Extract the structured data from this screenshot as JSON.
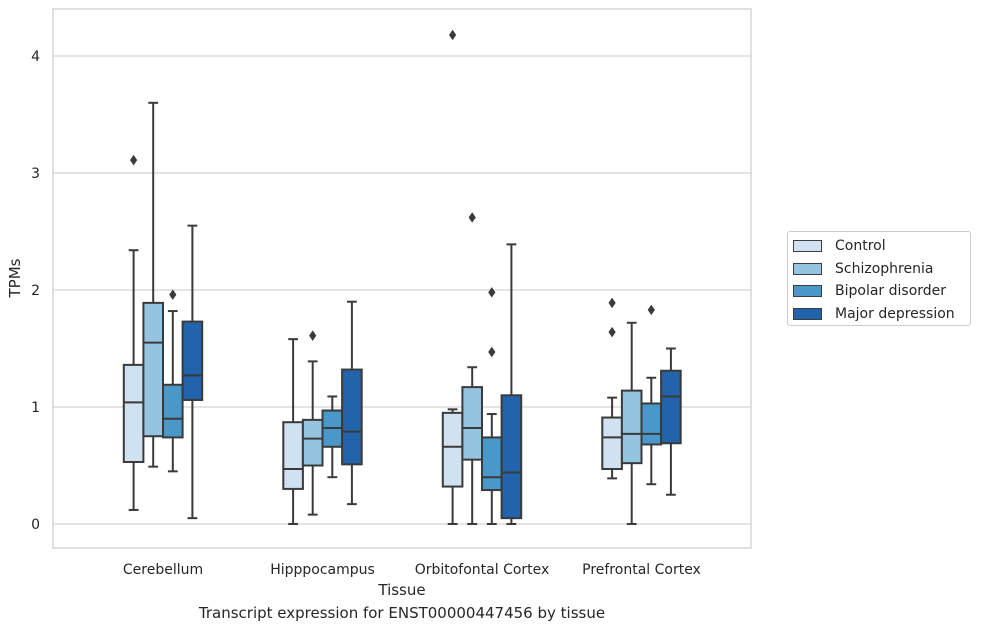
{
  "caption": "Transcript expression for ENST00000447456 by tissue",
  "chart_data": {
    "type": "box",
    "xlabel": "Tissue",
    "ylabel": "TPMs",
    "ylim": [
      -0.2,
      4.4
    ],
    "yticks": [
      0,
      1,
      2,
      3,
      4
    ],
    "categories": [
      "Cerebellum",
      "Hipppocampus",
      "Orbitofontal Cortex",
      "Prefrontal Cortex"
    ],
    "grid": "horizontal",
    "legend_position": "right",
    "series": [
      {
        "name": "Control",
        "color": "#d0e1f2",
        "boxes": [
          {
            "whisker_low": 0.12,
            "q1": 0.53,
            "median": 1.04,
            "q3": 1.36,
            "whisker_high": 2.34,
            "outliers": [
              3.11
            ]
          },
          {
            "whisker_low": 0.0,
            "q1": 0.3,
            "median": 0.47,
            "q3": 0.87,
            "whisker_high": 1.58,
            "outliers": []
          },
          {
            "whisker_low": 0.0,
            "q1": 0.32,
            "median": 0.66,
            "q3": 0.95,
            "whisker_high": 0.98,
            "outliers": [
              4.18
            ]
          },
          {
            "whisker_low": 0.39,
            "q1": 0.47,
            "median": 0.74,
            "q3": 0.91,
            "whisker_high": 1.08,
            "outliers": [
              1.64,
              1.89
            ]
          }
        ]
      },
      {
        "name": "Schizophrenia",
        "color": "#94c4df",
        "boxes": [
          {
            "whisker_low": 0.49,
            "q1": 0.75,
            "median": 1.55,
            "q3": 1.89,
            "whisker_high": 3.6,
            "outliers": []
          },
          {
            "whisker_low": 0.08,
            "q1": 0.5,
            "median": 0.73,
            "q3": 0.89,
            "whisker_high": 1.39,
            "outliers": [
              1.61
            ]
          },
          {
            "whisker_low": 0.0,
            "q1": 0.55,
            "median": 0.82,
            "q3": 1.17,
            "whisker_high": 1.34,
            "outliers": [
              2.62
            ]
          },
          {
            "whisker_low": 0.0,
            "q1": 0.52,
            "median": 0.77,
            "q3": 1.14,
            "whisker_high": 1.72,
            "outliers": []
          }
        ]
      },
      {
        "name": "Bipolar disorder",
        "color": "#4a98c9",
        "boxes": [
          {
            "whisker_low": 0.45,
            "q1": 0.74,
            "median": 0.9,
            "q3": 1.19,
            "whisker_high": 1.82,
            "outliers": [
              1.96
            ]
          },
          {
            "whisker_low": 0.4,
            "q1": 0.66,
            "median": 0.82,
            "q3": 0.97,
            "whisker_high": 1.09,
            "outliers": []
          },
          {
            "whisker_low": 0.0,
            "q1": 0.29,
            "median": 0.4,
            "q3": 0.74,
            "whisker_high": 0.94,
            "outliers": [
              1.47,
              1.98
            ]
          },
          {
            "whisker_low": 0.34,
            "q1": 0.68,
            "median": 0.77,
            "q3": 1.03,
            "whisker_high": 1.25,
            "outliers": [
              1.83
            ]
          }
        ]
      },
      {
        "name": "Major depression",
        "color": "#2164ab",
        "boxes": [
          {
            "whisker_low": 0.05,
            "q1": 1.06,
            "median": 1.27,
            "q3": 1.73,
            "whisker_high": 2.55,
            "outliers": []
          },
          {
            "whisker_low": 0.17,
            "q1": 0.51,
            "median": 0.79,
            "q3": 1.32,
            "whisker_high": 1.9,
            "outliers": []
          },
          {
            "whisker_low": 0.0,
            "q1": 0.05,
            "median": 0.44,
            "q3": 1.1,
            "whisker_high": 2.39,
            "outliers": []
          },
          {
            "whisker_low": 0.25,
            "q1": 0.69,
            "median": 1.09,
            "q3": 1.31,
            "whisker_high": 1.5,
            "outliers": []
          }
        ]
      }
    ]
  }
}
